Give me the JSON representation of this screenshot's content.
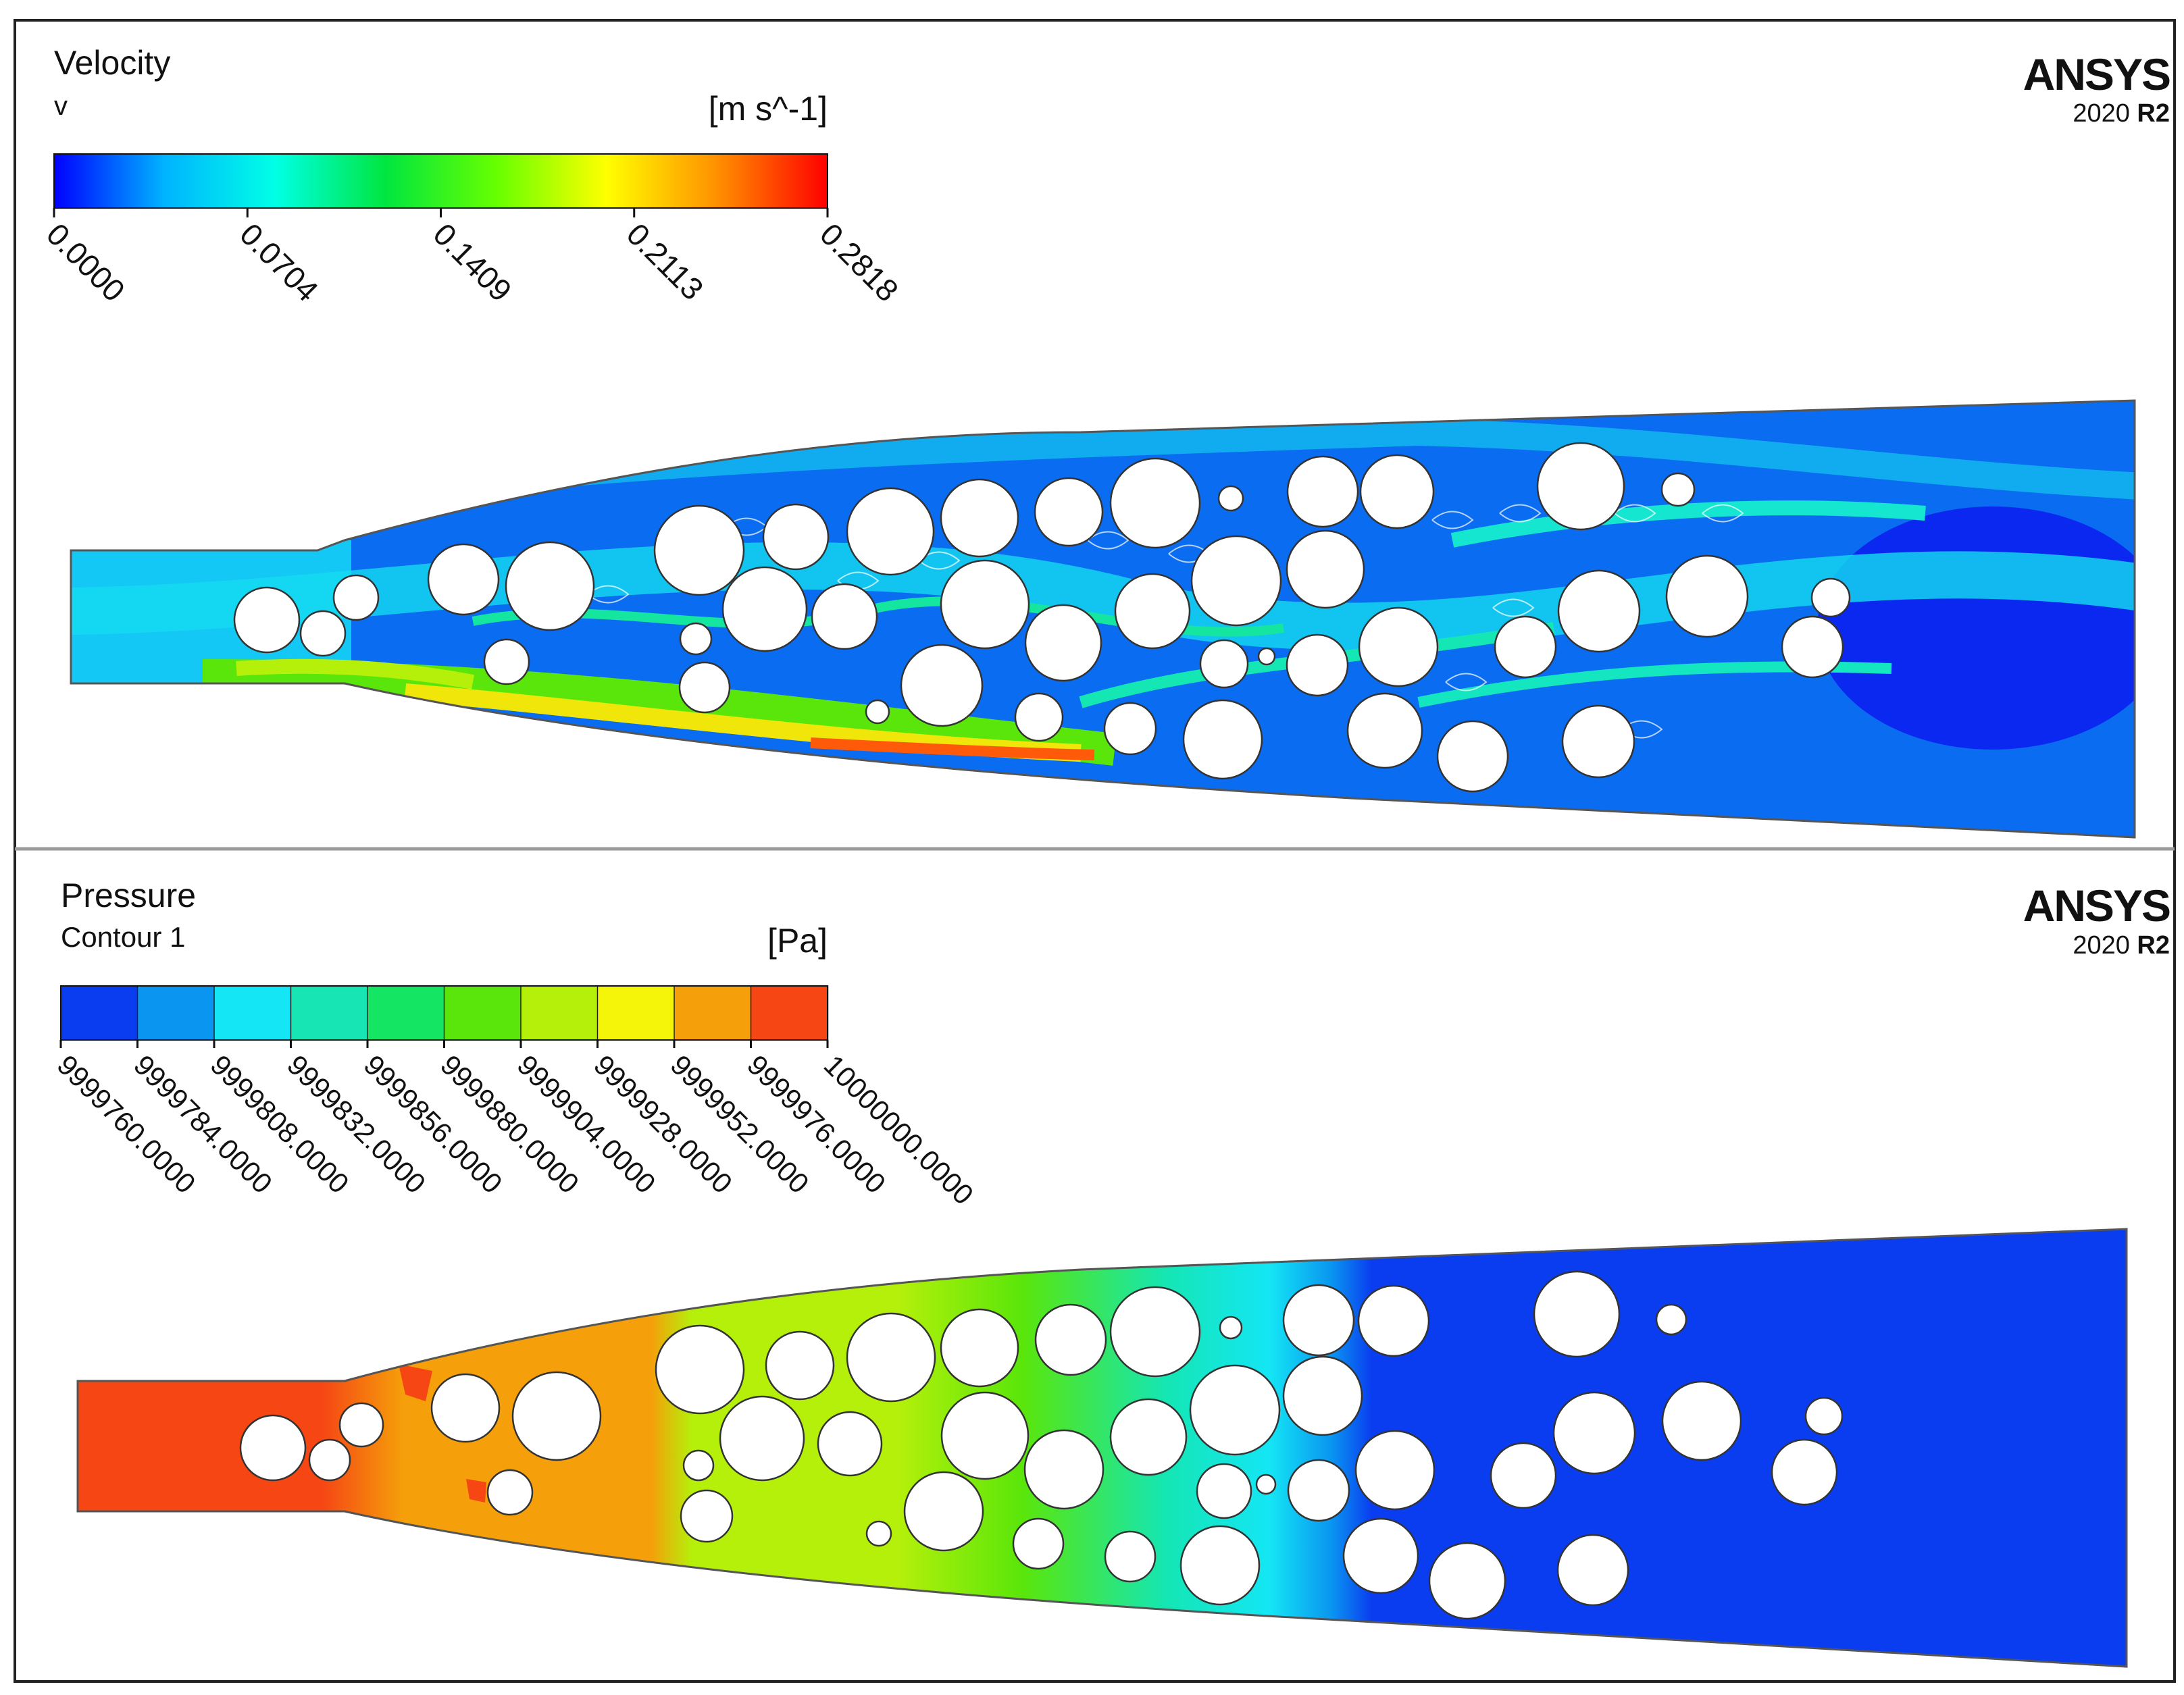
{
  "top_panel": {
    "title": "Velocity",
    "variable": "v",
    "units": "[m s^-1]",
    "legend_type": "continuous",
    "legend_ticks": [
      "0.0000",
      "0.0704",
      "0.1409",
      "0.2113",
      "0.2818"
    ],
    "legend_colors": [
      "#0000ff",
      "#00b4ff",
      "#00ffe6",
      "#00e640",
      "#66ff00",
      "#ffff00",
      "#ff9000",
      "#ff0000"
    ],
    "brand": "ANSYS",
    "version_num": "2020",
    "version_rel": "R2"
  },
  "bottom_panel": {
    "title": "Pressure",
    "variable": "Contour 1",
    "units": "[Pa]",
    "legend_type": "banded",
    "legend_ticks": [
      "9999760.0000",
      "9999784.0000",
      "9999808.0000",
      "9999832.0000",
      "9999856.0000",
      "9999880.0000",
      "9999904.0000",
      "9999928.0000",
      "9999952.0000",
      "9999976.0000",
      "10000000.0000"
    ],
    "band_colors": [
      "#0a3cf0",
      "#0a96f0",
      "#14e6f5",
      "#17e6b4",
      "#14e664",
      "#5ae60a",
      "#b4f00a",
      "#f5f50a",
      "#f5a00a",
      "#f54614"
    ],
    "brand": "ANSYS",
    "version_num": "2020",
    "version_rel": "R2"
  },
  "colors": {
    "frame": "#222222",
    "divider": "#9a9a9a",
    "obstacle_fill": "#ffffff",
    "obstacle_stroke": "#333333"
  }
}
